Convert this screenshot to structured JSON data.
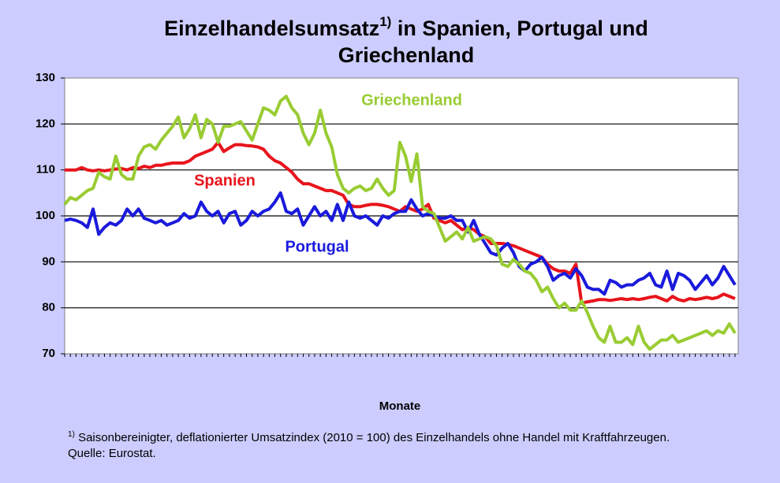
{
  "chart_data": {
    "type": "line",
    "title": [
      "Einzelhandelsumsatz",
      "1)",
      " in Spanien, Portugal und",
      "Griechenland"
    ],
    "x_label": "Monate",
    "footnote": [
      "1)",
      " Saisonbereinigter, deflationierter Umsatzindex (2010 = 100) des Einzelhandels ohne Handel mit Kraftfahrzeugen.",
      "Quelle: Eurostat."
    ],
    "categories": [
      null,
      null,
      null,
      null,
      null,
      null,
      null,
      null,
      null,
      null,
      null,
      null,
      null,
      null,
      null,
      null,
      null,
      null,
      null,
      null,
      null,
      null,
      null,
      null,
      null,
      null,
      null,
      null,
      null,
      null,
      null,
      null,
      null,
      null,
      null,
      null,
      null,
      null,
      null,
      null,
      null,
      null,
      null,
      null,
      null,
      null,
      null,
      null,
      null,
      null,
      null,
      null,
      null,
      null,
      null,
      null,
      null,
      null,
      null,
      null,
      null,
      null,
      null,
      null,
      null,
      null,
      null,
      null,
      null,
      null,
      null,
      null,
      null,
      null,
      null,
      null,
      null,
      null,
      null,
      null,
      null,
      null,
      null,
      null,
      null,
      null,
      null,
      null,
      null,
      null,
      null,
      null,
      null,
      null,
      null,
      null,
      null,
      null,
      null,
      null,
      null,
      null,
      null,
      null,
      null,
      null,
      null,
      null,
      null,
      null,
      null,
      null,
      null,
      null,
      null,
      null,
      null,
      null,
      null
    ],
    "ylim": [
      70,
      130
    ],
    "yticks": [
      70,
      80,
      90,
      100,
      110,
      120,
      130
    ],
    "grid": true,
    "series": [
      {
        "name": "Spanien",
        "color": "#e8141c",
        "values": [
          110,
          110,
          110,
          110.5,
          110,
          109.8,
          110,
          109.8,
          110,
          110.2,
          110.3,
          110,
          110.5,
          110.3,
          110.8,
          110.5,
          111,
          111,
          111.3,
          111.5,
          111.5,
          111.5,
          112,
          113,
          113.5,
          114,
          114.5,
          116,
          114,
          114.8,
          115.5,
          115.5,
          115.3,
          115.2,
          115,
          114.5,
          113,
          112,
          111.5,
          110.5,
          109.5,
          108,
          107,
          107,
          106.5,
          106,
          105.5,
          105.5,
          105,
          104.5,
          102.5,
          102,
          102,
          102.3,
          102.5,
          102.5,
          102.3,
          102,
          101.5,
          101,
          102,
          101.5,
          101,
          101.5,
          102.5,
          99.5,
          99,
          98.5,
          99,
          98,
          97,
          97.5,
          97,
          96,
          95.5,
          94,
          94,
          94,
          93.8,
          93.5,
          93,
          92.5,
          92,
          91.5,
          91,
          89.5,
          88.5,
          88,
          88,
          87.5,
          89.5,
          81,
          81.3,
          81.5,
          81.8,
          81.8,
          81.6,
          81.8,
          82,
          81.8,
          82,
          81.8,
          82,
          82.3,
          82.5,
          82,
          81.5,
          82.5,
          81.8,
          81.5,
          82,
          81.8,
          82,
          82.3,
          82,
          82.3,
          83,
          82.5,
          82
        ]
      },
      {
        "name": "Portugal",
        "color": "#1a1adc",
        "values": [
          99,
          99.3,
          99,
          98.5,
          97.5,
          101.5,
          96,
          97.5,
          98.5,
          98,
          99,
          101.5,
          100,
          101.5,
          99.5,
          99,
          98.5,
          99,
          98,
          98.5,
          99,
          100.5,
          99.5,
          100,
          103,
          101,
          100,
          101,
          98.5,
          100.5,
          101,
          98,
          99,
          101,
          100,
          101,
          101.5,
          103,
          105,
          101,
          100.5,
          101.5,
          98,
          100,
          102,
          100,
          101,
          99,
          102.5,
          99,
          103,
          100,
          99.5,
          100,
          99,
          98,
          100,
          99.5,
          100.5,
          101,
          101,
          103.5,
          101.5,
          100,
          100.5,
          100,
          99.5,
          99.5,
          100,
          99,
          99,
          96.5,
          99,
          96,
          94,
          92,
          91.5,
          93,
          94,
          92,
          89,
          88,
          89.5,
          90,
          91,
          89,
          86,
          87,
          87.5,
          86.5,
          88.5,
          87,
          84.5,
          84,
          84,
          83,
          86,
          85.5,
          84.5,
          85,
          85,
          86,
          86.5,
          87.5,
          85,
          84.5,
          88,
          84,
          87.5,
          87,
          86,
          84,
          85.5,
          87,
          85,
          86.5,
          89,
          87,
          85
        ]
      },
      {
        "name": "Griechenland",
        "color": "#99cc33",
        "values": [
          102.5,
          104,
          103.5,
          104.5,
          105.5,
          106,
          109.5,
          108.5,
          108,
          113,
          109,
          108,
          108,
          113,
          115,
          115.5,
          114.5,
          116.5,
          118,
          119.5,
          121.5,
          117,
          119,
          122,
          117,
          121,
          120,
          116,
          119.5,
          119.5,
          120,
          120.5,
          118.5,
          116.5,
          120,
          123.5,
          123,
          122,
          125,
          126,
          123.5,
          122,
          118,
          115.5,
          118,
          123,
          118,
          115,
          109,
          106,
          105,
          106,
          106.5,
          105.5,
          106,
          108,
          106,
          104.5,
          105.5,
          116,
          113,
          107.5,
          113.5,
          102,
          101,
          100.5,
          97.5,
          94.5,
          95.5,
          96.5,
          95,
          97.5,
          94.5,
          95,
          95.5,
          95,
          93.5,
          89.5,
          89,
          90.5,
          89.5,
          88,
          87.5,
          86,
          83.5,
          84.5,
          82,
          80,
          81,
          79.5,
          79.5,
          81.5,
          79,
          76,
          73.5,
          72.5,
          76,
          72.5,
          72.5,
          73.5,
          72,
          76,
          72.5,
          71,
          72,
          73,
          73,
          74,
          72.5,
          73,
          73.5,
          74,
          74.5,
          75,
          74,
          75,
          74.5,
          76.5,
          74.5
        ]
      }
    ]
  }
}
